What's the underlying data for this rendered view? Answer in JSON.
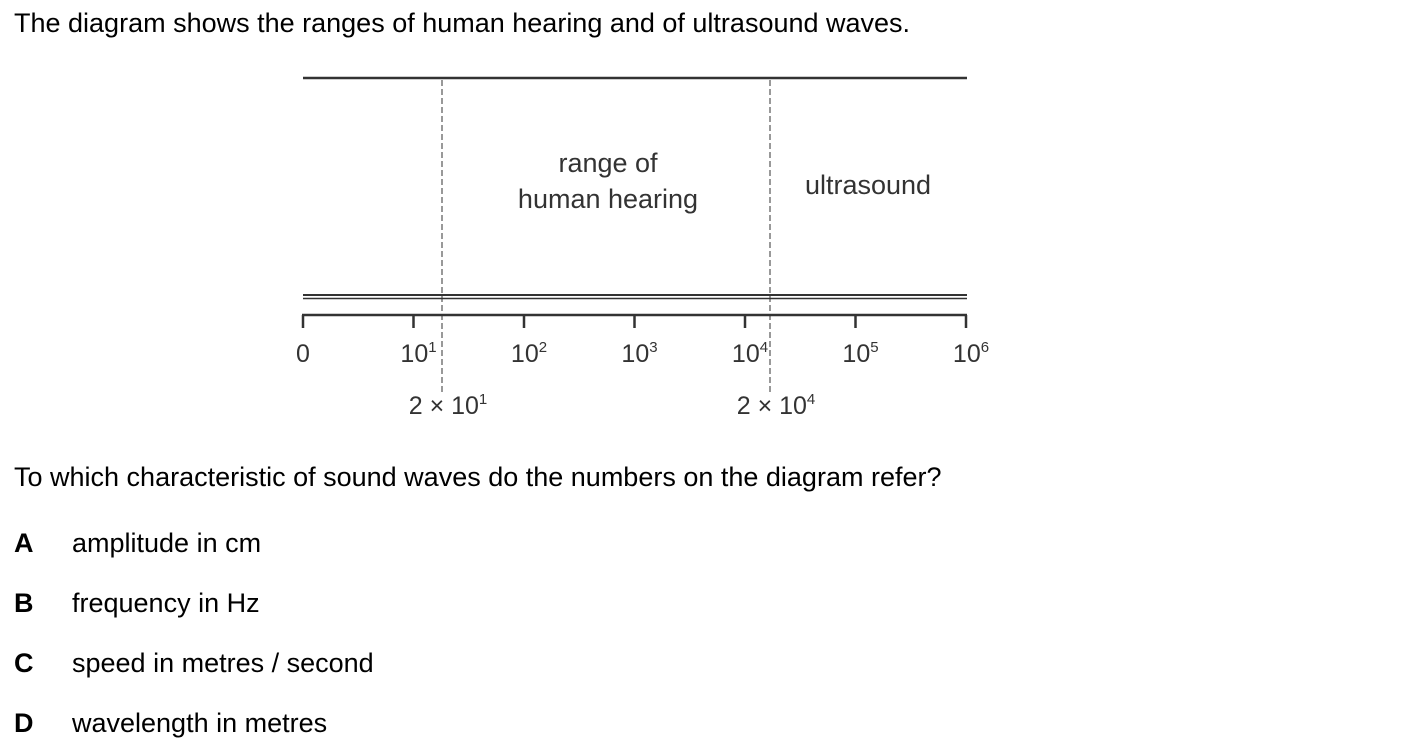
{
  "intro": "The diagram shows the ranges of human hearing and of ultrasound waves.",
  "diagram": {
    "labels": {
      "hearing_line1": "range of",
      "hearing_line2": "human hearing",
      "ultrasound": "ultrasound"
    },
    "scale": {
      "tick_labels": [
        {
          "base": "0",
          "exp": ""
        },
        {
          "base": "10",
          "exp": "1"
        },
        {
          "base": "10",
          "exp": "2"
        },
        {
          "base": "10",
          "exp": "3"
        },
        {
          "base": "10",
          "exp": "4"
        },
        {
          "base": "10",
          "exp": "5"
        },
        {
          "base": "10",
          "exp": "6"
        }
      ],
      "markers": [
        {
          "base": "2 × 10",
          "exp": "1"
        },
        {
          "base": "2 × 10",
          "exp": "4"
        }
      ]
    }
  },
  "question": "To which characteristic of sound waves do the numbers on the diagram refer?",
  "options": [
    {
      "letter": "A",
      "text": "amplitude in cm"
    },
    {
      "letter": "B",
      "text": "frequency in Hz"
    },
    {
      "letter": "C",
      "text": "speed in metres / second"
    },
    {
      "letter": "D",
      "text": "wavelength in metres"
    }
  ]
}
